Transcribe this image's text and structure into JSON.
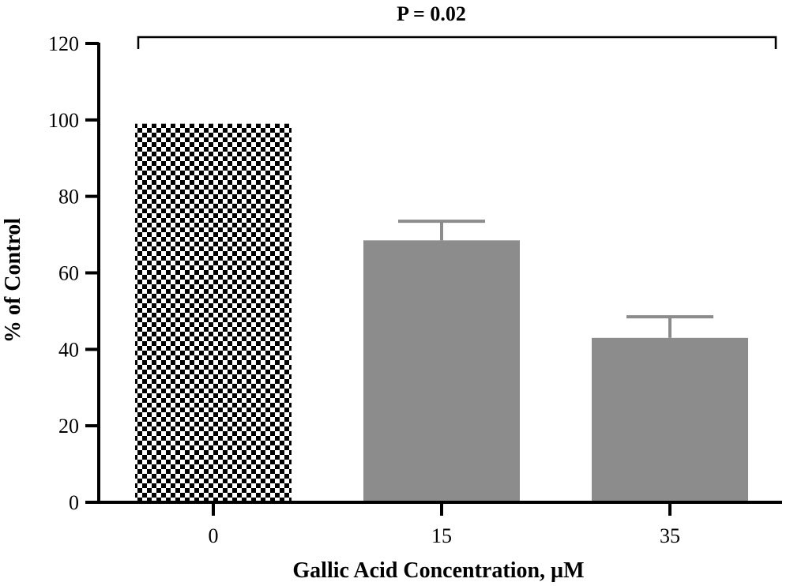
{
  "chart_data": {
    "type": "bar",
    "title": "",
    "xlabel": "Gallic Acid Concentration, µM",
    "ylabel": "% of Control",
    "categories": [
      "0",
      "15",
      "35"
    ],
    "values": [
      99,
      68.5,
      43
    ],
    "error_upper": [
      null,
      73.5,
      48.5
    ],
    "bar_fills": [
      "checkerboard",
      "#8c8c8c",
      "#8c8c8c"
    ],
    "ylim": [
      0,
      120
    ],
    "yticks": [
      0,
      20,
      40,
      60,
      80,
      100,
      120
    ],
    "grid": false,
    "legend": "none",
    "annotation": {
      "text": "P = 0.02",
      "spans": [
        "0",
        "35"
      ]
    }
  }
}
